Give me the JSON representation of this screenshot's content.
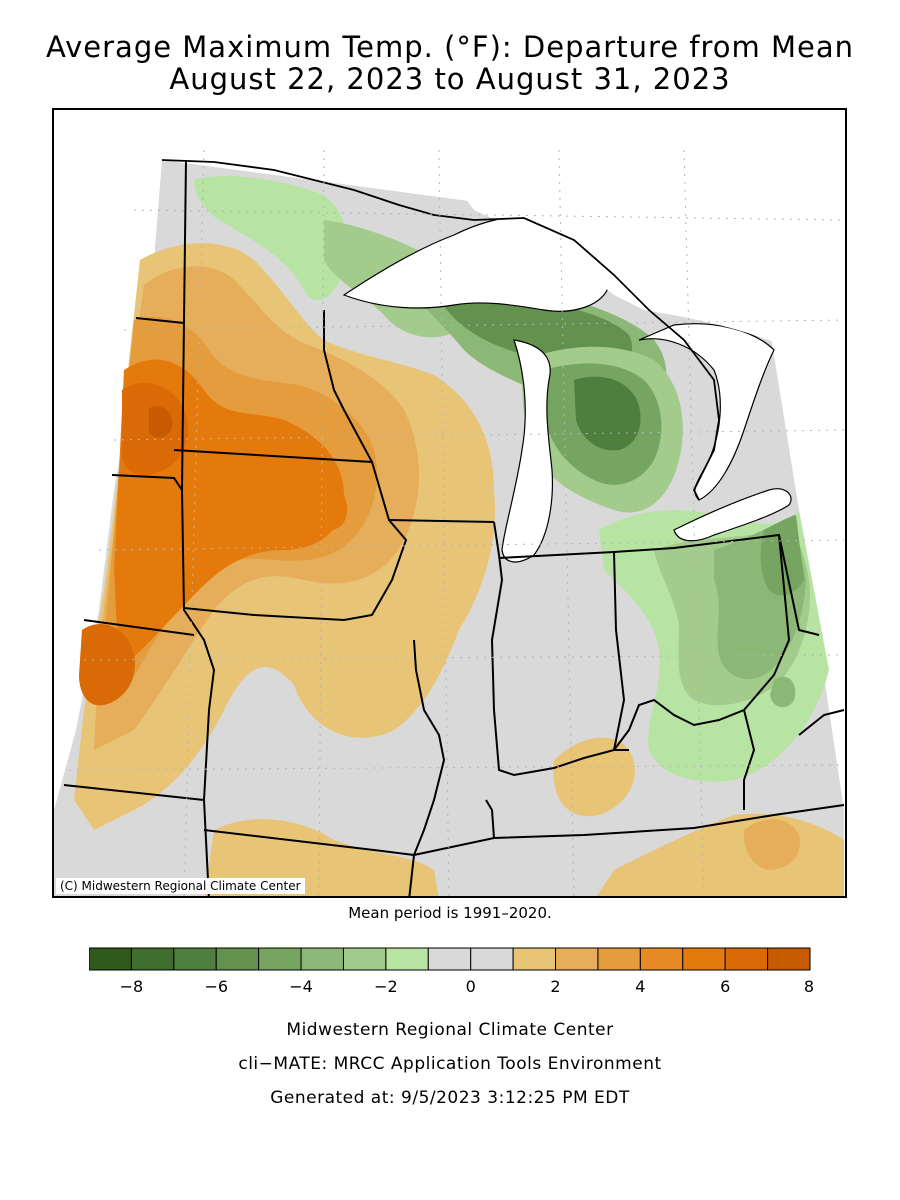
{
  "title": {
    "line1": "Average Maximum Temp. (°F): Departure from Mean",
    "line2": "August 22, 2023 to August 31, 2023"
  },
  "map": {
    "credit": "(C) Midwestern Regional Climate Center",
    "mean_period": "Mean period is 1991–2020."
  },
  "legend": {
    "bins": [
      {
        "color": "#2f5a1c"
      },
      {
        "color": "#3f6e2e"
      },
      {
        "color": "#4f7f3c"
      },
      {
        "color": "#62924e"
      },
      {
        "color": "#76a562"
      },
      {
        "color": "#8cb877"
      },
      {
        "color": "#a2cb8c"
      },
      {
        "color": "#b7e3a3"
      },
      {
        "color": "#d9d9d9"
      },
      {
        "color": "#d9d9d9"
      },
      {
        "color": "#e8c576"
      },
      {
        "color": "#e6ae5a"
      },
      {
        "color": "#e59c3d"
      },
      {
        "color": "#e68a24"
      },
      {
        "color": "#e57a0c"
      },
      {
        "color": "#d96a06"
      },
      {
        "color": "#c85a02"
      }
    ],
    "tick_labels": [
      "−8",
      "−6",
      "−4",
      "−2",
      "0",
      "2",
      "4",
      "6",
      "8"
    ]
  },
  "footer": {
    "line1": "Midwestern Regional Climate Center",
    "line2": "cli−MATE: MRCC Application Tools Environment",
    "line3": "Generated at: 9/5/2023 3:12:25 PM EDT"
  }
}
